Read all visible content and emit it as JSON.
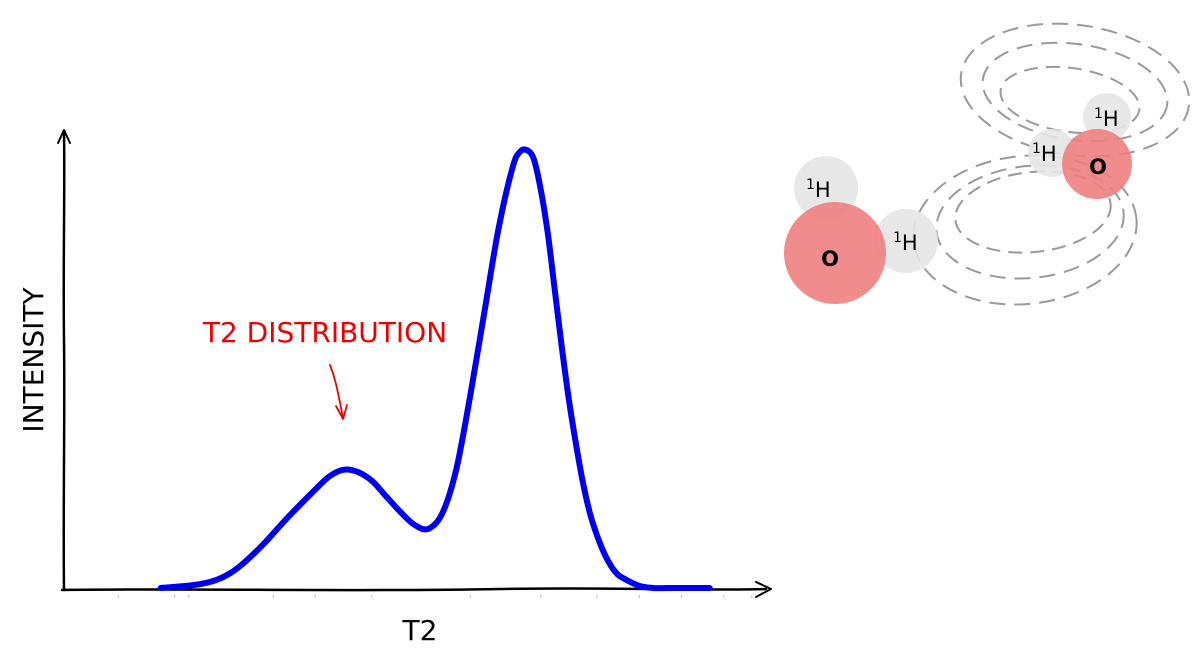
{
  "chart_data": {
    "type": "line",
    "xlabel": "T2",
    "ylabel": "INTENSITY",
    "xlim": [
      0,
      100
    ],
    "ylim": [
      0,
      100
    ],
    "grid": false,
    "ticks_labeled": false,
    "series": [
      {
        "color": "#0000ee",
        "x": [
          14,
          20,
          24,
          28,
          32,
          36,
          38,
          40,
          42,
          44,
          46,
          48,
          50,
          52,
          54,
          56,
          58,
          60,
          62,
          64,
          65,
          66,
          67,
          68,
          69,
          70,
          71,
          72,
          73,
          74,
          75,
          76,
          77,
          78,
          79,
          80,
          82,
          84,
          86,
          88,
          90,
          92
        ],
        "y": [
          0,
          1,
          3.5,
          9,
          16,
          22.5,
          25.5,
          27,
          26.5,
          24.5,
          21,
          17.5,
          14.5,
          13.5,
          17,
          27,
          44,
          63,
          82,
          96,
          99.5,
          100,
          98,
          91,
          81,
          68,
          55,
          43,
          33,
          24,
          17,
          12,
          8,
          5,
          3,
          2,
          0.5,
          0,
          0,
          0,
          0,
          0
        ]
      }
    ],
    "annotations": [
      {
        "text": "T2 DISTRIBUTION",
        "color": "#ee0000",
        "points_to_x": 40,
        "points_to_y": 39
      }
    ]
  },
  "molecules": {
    "atoms": [
      {
        "element": "O",
        "mass": "",
        "symbol": "O",
        "color": "#f08080",
        "role": "oxygen"
      },
      {
        "element": "H",
        "mass": "1",
        "symbol": "H",
        "color": "#e6e6e6",
        "role": "hydrogen"
      },
      {
        "element": "H",
        "mass": "1",
        "symbol": "H",
        "color": "#e6e6e6",
        "role": "hydrogen"
      },
      {
        "element": "O",
        "mass": "",
        "symbol": "O",
        "color": "#f08080",
        "role": "oxygen"
      },
      {
        "element": "H",
        "mass": "1",
        "symbol": "H",
        "color": "#e6e6e6",
        "role": "hydrogen"
      },
      {
        "element": "H",
        "mass": "1",
        "symbol": "H",
        "color": "#e6e6e6",
        "role": "hydrogen"
      }
    ],
    "field_line_color": "#9a9a9a"
  }
}
